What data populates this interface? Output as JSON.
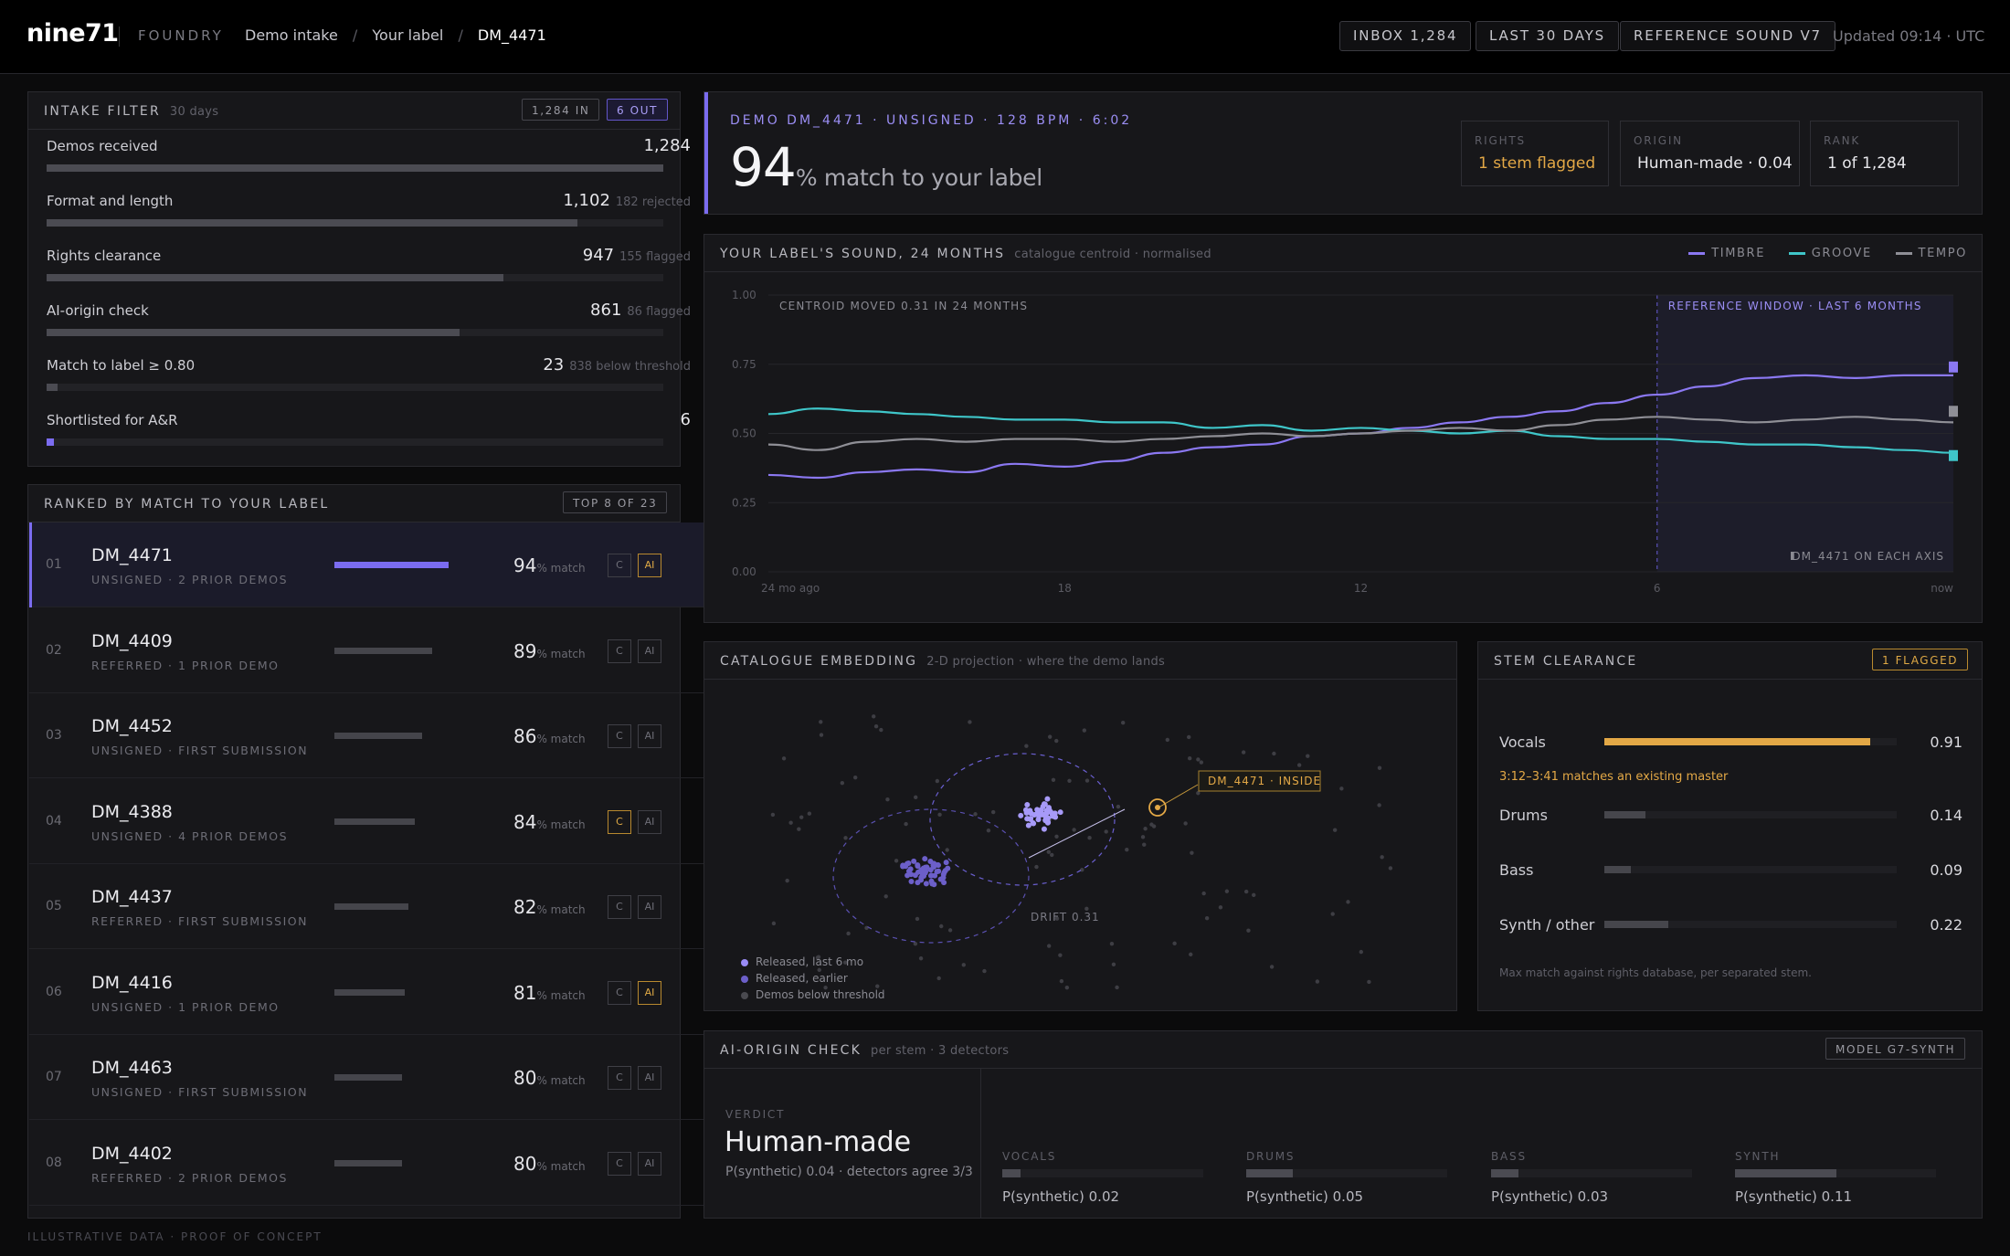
{
  "topbar": {
    "logo": "nine71",
    "section": "FOUNDRY",
    "breadcrumb": [
      "Demo intake",
      "Your label",
      "DM_4471"
    ],
    "buttons": [
      "INBOX 1,284",
      "LAST 30 DAYS",
      "REFERENCE SOUND V7"
    ],
    "updated": "Updated 09:14 · UTC"
  },
  "intake": {
    "title": "INTAKE FILTER",
    "sub": "30 days",
    "chip_in": "1,284 IN",
    "chip_out": "6 OUT",
    "rows": [
      {
        "label": "Demos received",
        "value": "1,284",
        "note": "",
        "fraction": 1.0
      },
      {
        "label": "Format and length",
        "value": "1,102",
        "note": "182 rejected",
        "fraction": 0.86
      },
      {
        "label": "Rights clearance",
        "value": "947",
        "note": "155 flagged",
        "fraction": 0.74
      },
      {
        "label": "AI-origin check",
        "value": "861",
        "note": "86 flagged",
        "fraction": 0.67
      },
      {
        "label": "Match to label ≥ 0.80",
        "value": "23",
        "note": "838 below threshold",
        "fraction": 0.018
      },
      {
        "label": "Shortlisted for A&R",
        "value": "6",
        "note": "",
        "fraction": 0.005
      }
    ]
  },
  "ranked": {
    "title": "RANKED BY MATCH TO YOUR LABEL",
    "chip": "TOP 8 OF 23",
    "match_suffix": "% match",
    "tag_c": "C",
    "tag_ai": "AI",
    "rows": [
      {
        "num": "01",
        "name": "DM_4471",
        "sub": "UNSIGNED · 2 PRIOR DEMOS",
        "pct": "94",
        "match": 0.94,
        "c": false,
        "ai": true,
        "selected": true
      },
      {
        "num": "02",
        "name": "DM_4409",
        "sub": "REFERRED · 1 PRIOR DEMO",
        "pct": "89",
        "match": 0.89,
        "c": false,
        "ai": false,
        "selected": false
      },
      {
        "num": "03",
        "name": "DM_4452",
        "sub": "UNSIGNED · FIRST SUBMISSION",
        "pct": "86",
        "match": 0.86,
        "c": false,
        "ai": false,
        "selected": false
      },
      {
        "num": "04",
        "name": "DM_4388",
        "sub": "UNSIGNED · 4 PRIOR DEMOS",
        "pct": "84",
        "match": 0.84,
        "c": true,
        "ai": false,
        "selected": false
      },
      {
        "num": "05",
        "name": "DM_4437",
        "sub": "REFERRED · FIRST SUBMISSION",
        "pct": "82",
        "match": 0.82,
        "c": false,
        "ai": false,
        "selected": false
      },
      {
        "num": "06",
        "name": "DM_4416",
        "sub": "UNSIGNED · 1 PRIOR DEMO",
        "pct": "81",
        "match": 0.81,
        "c": false,
        "ai": true,
        "selected": false
      },
      {
        "num": "07",
        "name": "DM_4463",
        "sub": "UNSIGNED · FIRST SUBMISSION",
        "pct": "80",
        "match": 0.8,
        "c": false,
        "ai": false,
        "selected": false
      },
      {
        "num": "08",
        "name": "DM_4402",
        "sub": "REFERRED · 2 PRIOR DEMOS",
        "pct": "80",
        "match": 0.8,
        "c": false,
        "ai": false,
        "selected": false
      }
    ]
  },
  "hero": {
    "eyebrow": "DEMO DM_4471 · UNSIGNED · 128 BPM · 6:02",
    "big": "94",
    "rest": "% match to your label",
    "stats": [
      {
        "k": "RIGHTS",
        "v": "1 stem flagged",
        "warn": true
      },
      {
        "k": "ORIGIN",
        "v": "Human-made · 0.04",
        "warn": false
      },
      {
        "k": "RANK",
        "v": "1 of 1,284",
        "warn": false
      }
    ]
  },
  "sound_chart": {
    "title": "YOUR LABEL'S SOUND, 24 MONTHS",
    "sub": "catalogue centroid · normalised",
    "annotation_left": "CENTROID MOVED 0.31 IN 24 MONTHS",
    "annotation_window": "REFERENCE WINDOW · LAST 6 MONTHS",
    "annotation_marker": "DM_4471 ON EACH AXIS"
  },
  "chart_data": {
    "type": "line",
    "title": "YOUR LABEL'S SOUND, 24 MONTHS",
    "x_ticks": [
      "24 mo ago",
      "18",
      "12",
      "6",
      "now"
    ],
    "y_ticks": [
      "1.00",
      "0.75",
      "0.50",
      "0.25",
      "0.00"
    ],
    "ylim": [
      0,
      1
    ],
    "x": [
      24,
      23,
      22,
      21,
      20,
      19,
      18,
      17,
      16,
      15,
      14,
      13,
      12,
      11,
      10,
      9,
      8,
      7,
      6,
      5,
      4,
      3,
      2,
      1,
      0
    ],
    "reference_window_start": 6,
    "legend": "top-right",
    "series": [
      {
        "name": "TIMBRE",
        "color": "#8b78f2",
        "values": [
          0.35,
          0.34,
          0.36,
          0.37,
          0.36,
          0.39,
          0.38,
          0.4,
          0.43,
          0.45,
          0.46,
          0.49,
          0.5,
          0.52,
          0.54,
          0.56,
          0.58,
          0.61,
          0.64,
          0.67,
          0.7,
          0.71,
          0.7,
          0.71,
          0.71
        ],
        "demo": 0.74
      },
      {
        "name": "GROOVE",
        "color": "#3fc6c9",
        "values": [
          0.57,
          0.59,
          0.58,
          0.57,
          0.56,
          0.55,
          0.55,
          0.54,
          0.54,
          0.52,
          0.53,
          0.51,
          0.52,
          0.51,
          0.5,
          0.51,
          0.49,
          0.48,
          0.48,
          0.47,
          0.46,
          0.46,
          0.45,
          0.44,
          0.43
        ],
        "demo": 0.42
      },
      {
        "name": "TEMPO",
        "color": "#8f8f96",
        "values": [
          0.46,
          0.44,
          0.47,
          0.48,
          0.47,
          0.48,
          0.48,
          0.47,
          0.48,
          0.49,
          0.5,
          0.49,
          0.5,
          0.51,
          0.52,
          0.51,
          0.53,
          0.55,
          0.56,
          0.55,
          0.54,
          0.55,
          0.56,
          0.55,
          0.54
        ],
        "demo": 0.58
      }
    ]
  },
  "embedding": {
    "title": "CATALOGUE EMBEDDING",
    "sub": "2-D projection · where the demo lands",
    "callout": "DM_4471 · INSIDE",
    "drift": "DRIFT 0.31",
    "legend": [
      {
        "label": "Released, last 6 mo",
        "color": "#9a8cf6"
      },
      {
        "label": "Released, earlier",
        "color": "#6c5fc9"
      },
      {
        "label": "Demos below threshold",
        "color": "#4a4a50"
      }
    ]
  },
  "stems": {
    "title": "STEM CLEARANCE",
    "chip": "1 FLAGGED",
    "warning": "3:12–3:41 matches an existing master",
    "footnote": "Max match against rights database, per separated stem.",
    "rows": [
      {
        "label": "Vocals",
        "value": "0.91",
        "amount": 0.91,
        "flag": true
      },
      {
        "label": "Drums",
        "value": "0.14",
        "amount": 0.14,
        "flag": false
      },
      {
        "label": "Bass",
        "value": "0.09",
        "amount": 0.09,
        "flag": false
      },
      {
        "label": "Synth / other",
        "value": "0.22",
        "amount": 0.22,
        "flag": false
      }
    ]
  },
  "ai_check": {
    "title": "AI-ORIGIN CHECK",
    "sub": "per stem · 3 detectors",
    "chip": "MODEL G7-SYNTH",
    "verdict_label": "VERDICT",
    "verdict": "Human-made",
    "verdict_sub": "P(synthetic) 0.04 · detectors agree 3/3",
    "detectors": [
      {
        "k": "VOCALS",
        "v": "P(synthetic) 0.02",
        "amount": 0.02
      },
      {
        "k": "DRUMS",
        "v": "P(synthetic) 0.05",
        "amount": 0.05
      },
      {
        "k": "BASS",
        "v": "P(synthetic) 0.03",
        "amount": 0.03
      },
      {
        "k": "SYNTH",
        "v": "P(synthetic) 0.11",
        "amount": 0.11
      }
    ]
  },
  "footer": "ILLUSTRATIVE DATA · PROOF OF CONCEPT"
}
